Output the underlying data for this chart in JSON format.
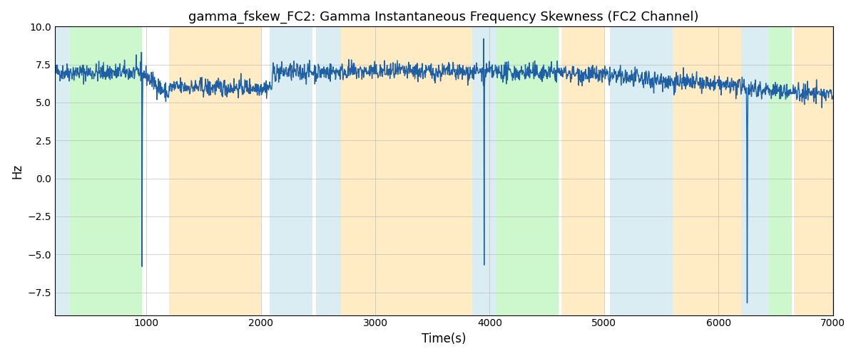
{
  "title": "gamma_fskew_FC2: Gamma Instantaneous Frequency Skewness (FC2 Channel)",
  "xlabel": "Time(s)",
  "ylabel": "Hz",
  "xlim": [
    200,
    7000
  ],
  "ylim": [
    -9,
    10.0
  ],
  "yticks": [
    -7.5,
    -5.0,
    -2.5,
    0.0,
    2.5,
    5.0,
    7.5,
    10.0
  ],
  "xticks": [
    1000,
    2000,
    3000,
    4000,
    5000,
    6000,
    7000
  ],
  "line_color": "#1f5fa6",
  "line_width": 1.0,
  "bg_regions": [
    {
      "xmin": 200,
      "xmax": 330,
      "color": "#add8e6",
      "alpha": 0.45
    },
    {
      "xmin": 330,
      "xmax": 960,
      "color": "#90ee90",
      "alpha": 0.45
    },
    {
      "xmin": 1200,
      "xmax": 2000,
      "color": "#ffd580",
      "alpha": 0.45
    },
    {
      "xmin": 2080,
      "xmax": 2450,
      "color": "#add8e6",
      "alpha": 0.45
    },
    {
      "xmin": 2480,
      "xmax": 2700,
      "color": "#add8e6",
      "alpha": 0.45
    },
    {
      "xmin": 2700,
      "xmax": 3850,
      "color": "#ffd580",
      "alpha": 0.45
    },
    {
      "xmin": 3850,
      "xmax": 4060,
      "color": "#add8e6",
      "alpha": 0.45
    },
    {
      "xmin": 4060,
      "xmax": 4600,
      "color": "#90ee90",
      "alpha": 0.45
    },
    {
      "xmin": 4630,
      "xmax": 5000,
      "color": "#ffd580",
      "alpha": 0.45
    },
    {
      "xmin": 5050,
      "xmax": 5600,
      "color": "#add8e6",
      "alpha": 0.45
    },
    {
      "xmin": 5600,
      "xmax": 6200,
      "color": "#ffd580",
      "alpha": 0.45
    },
    {
      "xmin": 6200,
      "xmax": 6440,
      "color": "#add8e6",
      "alpha": 0.45
    },
    {
      "xmin": 6440,
      "xmax": 6640,
      "color": "#90ee90",
      "alpha": 0.45
    },
    {
      "xmin": 6660,
      "xmax": 7000,
      "color": "#ffd580",
      "alpha": 0.45
    }
  ],
  "grid_color": "#b0b0b0",
  "grid_alpha": 0.8,
  "seed": 42,
  "n_points": 2000,
  "t_start": 200,
  "t_end": 7000,
  "base_mean": 7.0
}
